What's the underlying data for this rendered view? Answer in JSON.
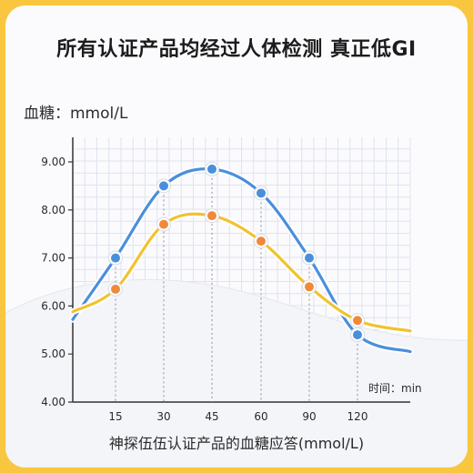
{
  "title": "所有认证产品均经过人体检测 真正低GI",
  "ylabel": "血糖：mmol/L",
  "caption": "神探伍伍认证产品的血糖应答(mmol/L)",
  "colors": {
    "background": "#f9c63f",
    "blue_series": "#4a8fdc",
    "yellow_series": "#f1c232",
    "orange_marker": "#f08a3a",
    "grid": "#dfe3ef"
  },
  "chart_data": {
    "type": "line",
    "title": "所有认证产品均经过人体检测 真正低GI",
    "ylabel": "血糖：mmol/L",
    "xlabel": "时间：min",
    "x": [
      15,
      30,
      45,
      60,
      90,
      120
    ],
    "x_ticks": [
      "15",
      "30",
      "45",
      "60",
      "90",
      "120"
    ],
    "y_ticks": [
      "4.00",
      "5.00",
      "6.00",
      "7.00",
      "8.00",
      "9.00"
    ],
    "ylim": [
      4.0,
      9.5
    ],
    "grid": true,
    "series": [
      {
        "color": "#4a8fdc",
        "values": [
          7.0,
          8.5,
          8.85,
          8.35,
          7.0,
          5.4
        ]
      },
      {
        "color": "#f1c232",
        "values": [
          6.35,
          7.7,
          7.88,
          7.35,
          6.4,
          5.7
        ]
      }
    ]
  }
}
